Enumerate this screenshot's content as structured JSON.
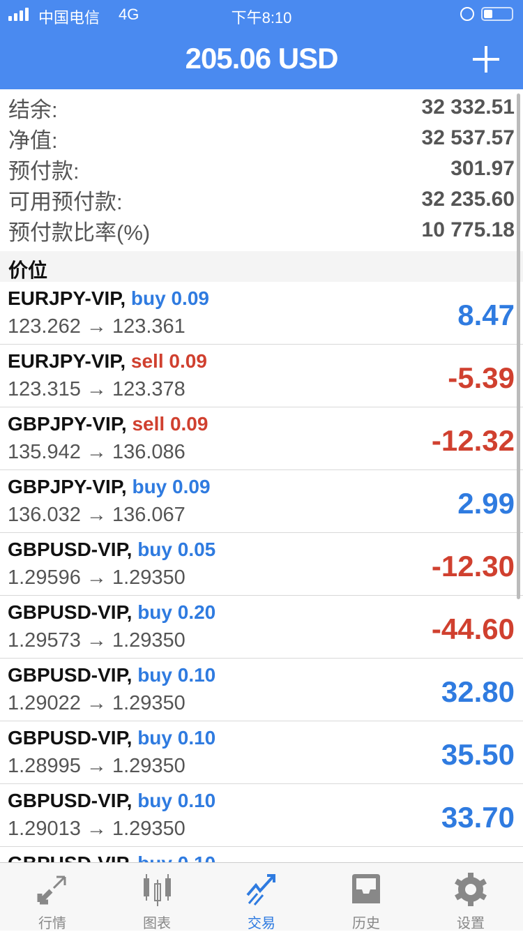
{
  "status": {
    "carrier": "中国电信",
    "network": "4G",
    "time": "下午8:10"
  },
  "header": {
    "title": "205.06 USD",
    "add_icon": "plus-icon"
  },
  "summary": [
    {
      "label": "结余:",
      "value": "32 332.51"
    },
    {
      "label": "净值:",
      "value": "32 537.57"
    },
    {
      "label": "预付款:",
      "value": "301.97"
    },
    {
      "label": "可用预付款:",
      "value": "32 235.60"
    },
    {
      "label": "预付款比率(%)",
      "value": "10 775.18"
    }
  ],
  "section_title": "价位",
  "colors": {
    "buy": "#2f7be0",
    "sell": "#d0402f",
    "header": "#4a8af0"
  },
  "positions": [
    {
      "symbol": "EURJPY-VIP,",
      "side": "buy 0.09",
      "type": "buy",
      "prices": "123.262 → 123.361",
      "profit": "8.47"
    },
    {
      "symbol": "EURJPY-VIP,",
      "side": "sell 0.09",
      "type": "sell",
      "prices": "123.315 → 123.378",
      "profit": "-5.39"
    },
    {
      "symbol": "GBPJPY-VIP,",
      "side": "sell 0.09",
      "type": "sell",
      "prices": "135.942 → 136.086",
      "profit": "-12.32"
    },
    {
      "symbol": "GBPJPY-VIP,",
      "side": "buy 0.09",
      "type": "buy",
      "prices": "136.032 → 136.067",
      "profit": "2.99"
    },
    {
      "symbol": "GBPUSD-VIP,",
      "side": "buy 0.05",
      "type": "buy",
      "prices": "1.29596 → 1.29350",
      "profit": "-12.30"
    },
    {
      "symbol": "GBPUSD-VIP,",
      "side": "buy 0.20",
      "type": "buy",
      "prices": "1.29573 → 1.29350",
      "profit": "-44.60"
    },
    {
      "symbol": "GBPUSD-VIP,",
      "side": "buy 0.10",
      "type": "buy",
      "prices": "1.29022 → 1.29350",
      "profit": "32.80"
    },
    {
      "symbol": "GBPUSD-VIP,",
      "side": "buy 0.10",
      "type": "buy",
      "prices": "1.28995 → 1.29350",
      "profit": "35.50"
    },
    {
      "symbol": "GBPUSD-VIP,",
      "side": "buy 0.10",
      "type": "buy",
      "prices": "1.29013 → 1.29350",
      "profit": "33.70"
    },
    {
      "symbol": "GBPUSD-VIP,",
      "side": "buy 0.10",
      "type": "buy",
      "prices": "",
      "profit": ""
    }
  ],
  "tabs": [
    {
      "label": "行情",
      "icon": "quotes-arrows-icon"
    },
    {
      "label": "图表",
      "icon": "candlestick-chart-icon"
    },
    {
      "label": "交易",
      "icon": "trade-trend-icon",
      "active": true
    },
    {
      "label": "历史",
      "icon": "history-inbox-icon"
    },
    {
      "label": "设置",
      "icon": "settings-gear-icon"
    }
  ]
}
